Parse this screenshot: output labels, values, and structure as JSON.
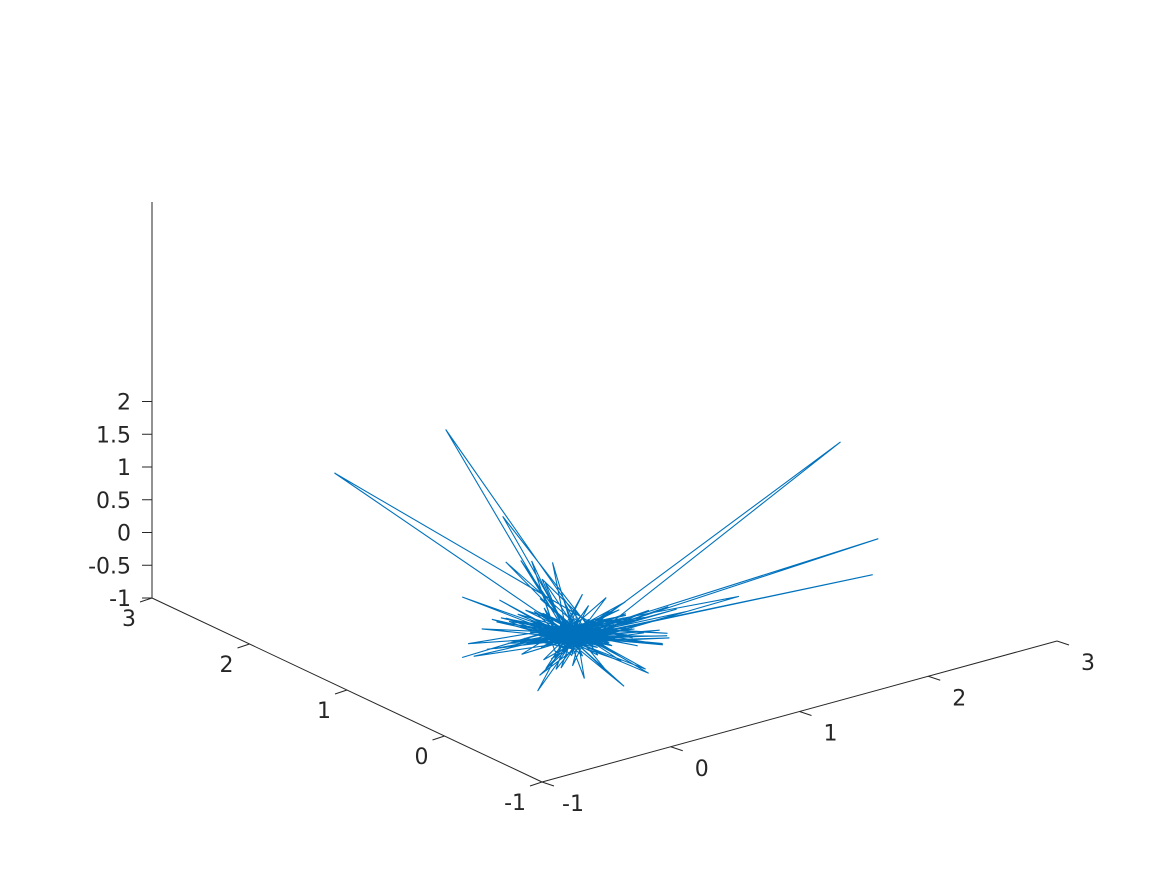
{
  "chart_data": {
    "type": "line3d",
    "title": "",
    "xlabel": "",
    "ylabel": "",
    "zlabel": "",
    "xlim": [
      -1,
      3
    ],
    "ylim": [
      -1,
      3
    ],
    "zlim": [
      -1,
      2
    ],
    "grid": false,
    "line_color": "#0072BD",
    "axis_color": "#262626",
    "x_ticks": [
      "-1",
      "0",
      "1",
      "2",
      "3"
    ],
    "y_ticks": [
      "-1",
      "0",
      "1",
      "2",
      "3"
    ],
    "z_ticks": [
      "-1",
      "-0.5",
      "0",
      "0.5",
      "1",
      "1.5",
      "2"
    ],
    "center_point": [
      0,
      0,
      0
    ],
    "prominent_endpoints": [
      [
        -0.37,
        1.96,
        1.3
      ],
      [
        3.0,
        1.22,
        0.48
      ],
      [
        0.63,
        2.14,
        1.3
      ],
      [
        2.43,
        0.08,
        0.11
      ],
      [
        2.0,
        -0.43,
        0.15
      ],
      [
        1.15,
        -0.18,
        0.1
      ],
      [
        0.55,
        1.45,
        0.5
      ],
      [
        0.29,
        0.81,
        0.41
      ],
      [
        0.2,
        0.55,
        0.3
      ],
      [
        0.35,
        1.0,
        0.25
      ],
      [
        -0.22,
        0.4,
        0.1
      ],
      [
        -0.18,
        0.52,
        0.27
      ],
      [
        0.18,
        0.93,
        0.37
      ],
      [
        0.52,
        0.9,
        0.2
      ],
      [
        0.4,
        -0.1,
        -0.05
      ],
      [
        0.15,
        -0.2,
        -0.1
      ]
    ]
  }
}
